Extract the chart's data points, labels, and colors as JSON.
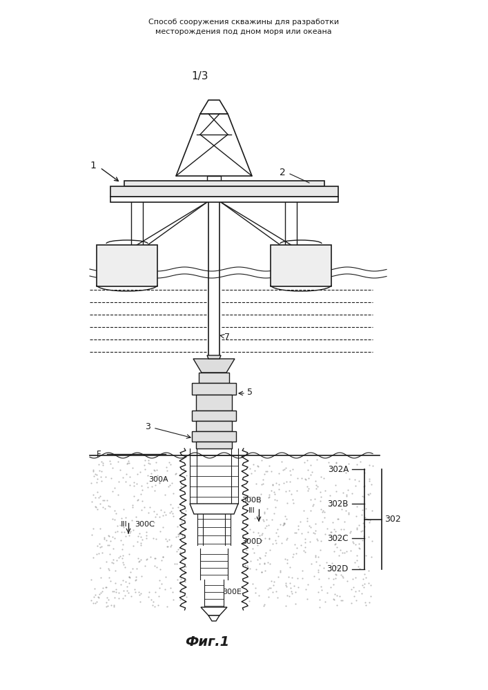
{
  "title_line1": "Способ сооружения скважины для разработки",
  "title_line2": "месторождения под дном моря или океана",
  "page_label": "1/3",
  "fig_label": "Фиг.1",
  "bg_color": "#ffffff",
  "line_color": "#1a1a1a"
}
